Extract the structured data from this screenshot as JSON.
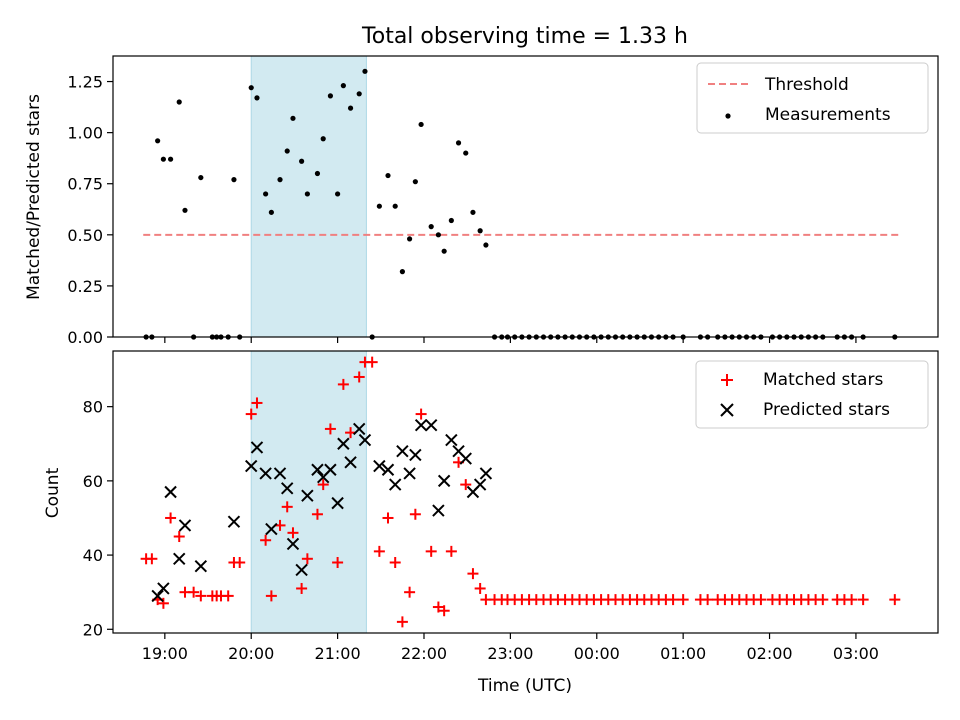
{
  "chart_data": [
    {
      "type": "scatter",
      "title": "Total observing time = 1.33 h",
      "xlabel": "",
      "ylabel": "Matched/Predicted stars",
      "xlim": [
        "18:24",
        "03:57"
      ],
      "ylim": [
        0,
        1.375
      ],
      "yticks": [
        0.0,
        0.25,
        0.5,
        0.75,
        1.0,
        1.25
      ],
      "ytick_labels": [
        "0.00",
        "0.25",
        "0.50",
        "0.75",
        "1.00",
        "1.25"
      ],
      "shaded_interval": [
        "20:00",
        "21:20"
      ],
      "shaded_color": "#add8e6",
      "legend": {
        "placement": "upper right",
        "entries": [
          "Threshold",
          "Measurements"
        ]
      },
      "threshold": {
        "name": "Threshold",
        "value": 0.5,
        "x_range": [
          "18:45",
          "03:30"
        ],
        "color": "#f08080",
        "style": "dashed"
      },
      "series": [
        {
          "name": "Measurements",
          "marker": "dot",
          "color": "#000000",
          "points": [
            [
              "18:47",
              0.0
            ],
            [
              "18:51",
              0.0
            ],
            [
              "18:55",
              0.96
            ],
            [
              "18:59",
              0.87
            ],
            [
              "19:04",
              0.87
            ],
            [
              "19:10",
              1.15
            ],
            [
              "19:14",
              0.62
            ],
            [
              "19:20",
              0.0
            ],
            [
              "19:25",
              0.78
            ],
            [
              "19:33",
              0.0
            ],
            [
              "19:36",
              0.0
            ],
            [
              "19:39",
              0.0
            ],
            [
              "19:44",
              0.0
            ],
            [
              "19:48",
              0.77
            ],
            [
              "19:52",
              0.0
            ],
            [
              "20:00",
              1.22
            ],
            [
              "20:04",
              1.17
            ],
            [
              "20:10",
              0.7
            ],
            [
              "20:14",
              0.61
            ],
            [
              "20:20",
              0.77
            ],
            [
              "20:25",
              0.91
            ],
            [
              "20:29",
              1.07
            ],
            [
              "20:35",
              0.86
            ],
            [
              "20:39",
              0.7
            ],
            [
              "20:46",
              0.8
            ],
            [
              "20:50",
              0.97
            ],
            [
              "20:55",
              1.18
            ],
            [
              "21:00",
              0.7
            ],
            [
              "21:04",
              1.23
            ],
            [
              "21:09",
              1.12
            ],
            [
              "21:15",
              1.19
            ],
            [
              "21:19",
              1.3
            ],
            [
              "21:24",
              0.0
            ],
            [
              "21:29",
              0.64
            ],
            [
              "21:35",
              0.79
            ],
            [
              "21:40",
              0.64
            ],
            [
              "21:45",
              0.32
            ],
            [
              "21:50",
              0.48
            ],
            [
              "21:54",
              0.76
            ],
            [
              "21:58",
              1.04
            ],
            [
              "22:05",
              0.54
            ],
            [
              "22:10",
              0.5
            ],
            [
              "22:14",
              0.42
            ],
            [
              "22:19",
              0.57
            ],
            [
              "22:24",
              0.95
            ],
            [
              "22:29",
              0.9
            ],
            [
              "22:34",
              0.61
            ],
            [
              "22:39",
              0.52
            ],
            [
              "22:43",
              0.45
            ],
            [
              "22:49",
              0.0
            ],
            [
              "22:54",
              0.0
            ],
            [
              "22:58",
              0.0
            ],
            [
              "23:03",
              0.0
            ],
            [
              "23:08",
              0.0
            ],
            [
              "23:13",
              0.0
            ],
            [
              "23:18",
              0.0
            ],
            [
              "23:23",
              0.0
            ],
            [
              "23:28",
              0.0
            ],
            [
              "23:33",
              0.0
            ],
            [
              "23:38",
              0.0
            ],
            [
              "23:43",
              0.0
            ],
            [
              "23:48",
              0.0
            ],
            [
              "23:53",
              0.0
            ],
            [
              "23:58",
              0.0
            ],
            [
              "00:03",
              0.0
            ],
            [
              "00:08",
              0.0
            ],
            [
              "00:13",
              0.0
            ],
            [
              "00:18",
              0.0
            ],
            [
              "00:23",
              0.0
            ],
            [
              "00:28",
              0.0
            ],
            [
              "00:33",
              0.0
            ],
            [
              "00:38",
              0.0
            ],
            [
              "00:43",
              0.0
            ],
            [
              "00:48",
              0.0
            ],
            [
              "00:53",
              0.0
            ],
            [
              "01:00",
              0.0
            ],
            [
              "01:12",
              0.0
            ],
            [
              "01:17",
              0.0
            ],
            [
              "01:24",
              0.0
            ],
            [
              "01:29",
              0.0
            ],
            [
              "01:34",
              0.0
            ],
            [
              "01:39",
              0.0
            ],
            [
              "01:44",
              0.0
            ],
            [
              "01:49",
              0.0
            ],
            [
              "01:54",
              0.0
            ],
            [
              "02:02",
              0.0
            ],
            [
              "02:07",
              0.0
            ],
            [
              "02:12",
              0.0
            ],
            [
              "02:17",
              0.0
            ],
            [
              "02:22",
              0.0
            ],
            [
              "02:27",
              0.0
            ],
            [
              "02:32",
              0.0
            ],
            [
              "02:37",
              0.0
            ],
            [
              "02:47",
              0.0
            ],
            [
              "02:52",
              0.0
            ],
            [
              "02:57",
              0.0
            ],
            [
              "03:05",
              0.0
            ],
            [
              "03:27",
              0.0
            ]
          ]
        }
      ]
    },
    {
      "type": "scatter",
      "title": "",
      "xlabel": "Time (UTC)",
      "ylabel": "Count",
      "xlim": [
        "18:24",
        "03:57"
      ],
      "ylim": [
        19,
        95
      ],
      "yticks": [
        20,
        40,
        60,
        80
      ],
      "ytick_labels": [
        "20",
        "40",
        "60",
        "80"
      ],
      "xticks": [
        "19:00",
        "20:00",
        "21:00",
        "22:00",
        "23:00",
        "00:00",
        "01:00",
        "02:00",
        "03:00"
      ],
      "xtick_labels": [
        "19:00",
        "20:00",
        "21:00",
        "22:00",
        "23:00",
        "00:00",
        "01:00",
        "02:00",
        "03:00"
      ],
      "shaded_interval": [
        "20:00",
        "21:20"
      ],
      "shaded_color": "#add8e6",
      "legend": {
        "placement": "upper right",
        "entries": [
          "Matched stars",
          "Predicted stars"
        ]
      },
      "series": [
        {
          "name": "Matched stars",
          "marker": "plus",
          "color": "#ff0000",
          "points": [
            [
              "18:47",
              39
            ],
            [
              "18:51",
              39
            ],
            [
              "18:55",
              28
            ],
            [
              "18:59",
              27
            ],
            [
              "19:04",
              50
            ],
            [
              "19:10",
              45
            ],
            [
              "19:14",
              30
            ],
            [
              "19:20",
              30
            ],
            [
              "19:25",
              29
            ],
            [
              "19:33",
              29
            ],
            [
              "19:36",
              29
            ],
            [
              "19:39",
              29
            ],
            [
              "19:44",
              29
            ],
            [
              "19:48",
              38
            ],
            [
              "19:52",
              38
            ],
            [
              "20:00",
              78
            ],
            [
              "20:04",
              81
            ],
            [
              "20:10",
              44
            ],
            [
              "20:14",
              29
            ],
            [
              "20:20",
              48
            ],
            [
              "20:25",
              53
            ],
            [
              "20:29",
              46
            ],
            [
              "20:35",
              31
            ],
            [
              "20:39",
              39
            ],
            [
              "20:46",
              51
            ],
            [
              "20:50",
              59
            ],
            [
              "20:55",
              74
            ],
            [
              "21:00",
              38
            ],
            [
              "21:04",
              86
            ],
            [
              "21:09",
              73
            ],
            [
              "21:15",
              88
            ],
            [
              "21:19",
              92
            ],
            [
              "21:24",
              92
            ],
            [
              "21:29",
              41
            ],
            [
              "21:35",
              50
            ],
            [
              "21:40",
              38
            ],
            [
              "21:45",
              22
            ],
            [
              "21:50",
              30
            ],
            [
              "21:54",
              51
            ],
            [
              "21:58",
              78
            ],
            [
              "22:05",
              41
            ],
            [
              "22:10",
              26
            ],
            [
              "22:14",
              25
            ],
            [
              "22:19",
              41
            ],
            [
              "22:24",
              65
            ],
            [
              "22:29",
              59
            ],
            [
              "22:34",
              35
            ],
            [
              "22:39",
              31
            ],
            [
              "22:43",
              28
            ],
            [
              "22:49",
              28
            ],
            [
              "22:54",
              28
            ],
            [
              "22:58",
              28
            ],
            [
              "23:03",
              28
            ],
            [
              "23:08",
              28
            ],
            [
              "23:13",
              28
            ],
            [
              "23:18",
              28
            ],
            [
              "23:23",
              28
            ],
            [
              "23:28",
              28
            ],
            [
              "23:33",
              28
            ],
            [
              "23:38",
              28
            ],
            [
              "23:43",
              28
            ],
            [
              "23:48",
              28
            ],
            [
              "23:53",
              28
            ],
            [
              "23:58",
              28
            ],
            [
              "00:03",
              28
            ],
            [
              "00:08",
              28
            ],
            [
              "00:13",
              28
            ],
            [
              "00:18",
              28
            ],
            [
              "00:23",
              28
            ],
            [
              "00:28",
              28
            ],
            [
              "00:33",
              28
            ],
            [
              "00:38",
              28
            ],
            [
              "00:43",
              28
            ],
            [
              "00:48",
              28
            ],
            [
              "00:53",
              28
            ],
            [
              "01:00",
              28
            ],
            [
              "01:12",
              28
            ],
            [
              "01:17",
              28
            ],
            [
              "01:24",
              28
            ],
            [
              "01:29",
              28
            ],
            [
              "01:34",
              28
            ],
            [
              "01:39",
              28
            ],
            [
              "01:44",
              28
            ],
            [
              "01:49",
              28
            ],
            [
              "01:54",
              28
            ],
            [
              "02:02",
              28
            ],
            [
              "02:07",
              28
            ],
            [
              "02:12",
              28
            ],
            [
              "02:17",
              28
            ],
            [
              "02:22",
              28
            ],
            [
              "02:27",
              28
            ],
            [
              "02:32",
              28
            ],
            [
              "02:37",
              28
            ],
            [
              "02:47",
              28
            ],
            [
              "02:52",
              28
            ],
            [
              "02:57",
              28
            ],
            [
              "03:05",
              28
            ],
            [
              "03:27",
              28
            ]
          ]
        },
        {
          "name": "Predicted stars",
          "marker": "x",
          "color": "#000000",
          "points": [
            [
              "18:55",
              29
            ],
            [
              "18:59",
              31
            ],
            [
              "19:04",
              57
            ],
            [
              "19:10",
              39
            ],
            [
              "19:14",
              48
            ],
            [
              "19:25",
              37
            ],
            [
              "19:48",
              49
            ],
            [
              "20:00",
              64
            ],
            [
              "20:04",
              69
            ],
            [
              "20:10",
              62
            ],
            [
              "20:14",
              47
            ],
            [
              "20:20",
              62
            ],
            [
              "20:25",
              58
            ],
            [
              "20:29",
              43
            ],
            [
              "20:35",
              36
            ],
            [
              "20:39",
              56
            ],
            [
              "20:46",
              63
            ],
            [
              "20:50",
              61
            ],
            [
              "20:55",
              63
            ],
            [
              "21:00",
              54
            ],
            [
              "21:04",
              70
            ],
            [
              "21:09",
              65
            ],
            [
              "21:15",
              74
            ],
            [
              "21:19",
              71
            ],
            [
              "21:29",
              64
            ],
            [
              "21:35",
              63
            ],
            [
              "21:40",
              59
            ],
            [
              "21:45",
              68
            ],
            [
              "21:50",
              62
            ],
            [
              "21:54",
              67
            ],
            [
              "21:58",
              75
            ],
            [
              "22:05",
              75
            ],
            [
              "22:10",
              52
            ],
            [
              "22:14",
              60
            ],
            [
              "22:19",
              71
            ],
            [
              "22:24",
              68
            ],
            [
              "22:29",
              66
            ],
            [
              "22:34",
              57
            ],
            [
              "22:39",
              59
            ],
            [
              "22:43",
              62
            ]
          ]
        }
      ]
    }
  ]
}
